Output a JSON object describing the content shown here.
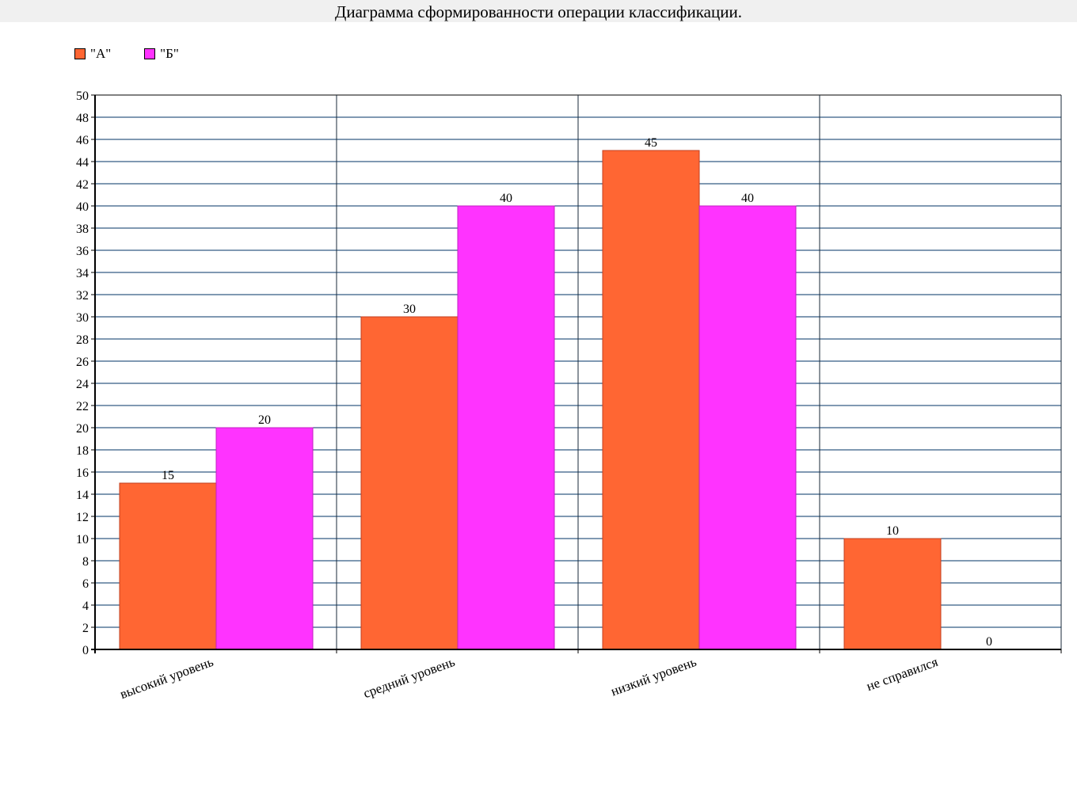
{
  "chart_data": {
    "type": "bar",
    "title": "Диаграмма сформированности операции классификации.",
    "categories": [
      "высокий уровень",
      "средний уровень",
      "низкий уровень",
      "не справился"
    ],
    "series": [
      {
        "name": "\"А\"",
        "color": "#ff6633",
        "values": [
          15,
          30,
          45,
          10
        ]
      },
      {
        "name": "\"Б\"",
        "color": "#ff33ff",
        "values": [
          20,
          40,
          40,
          0
        ]
      }
    ],
    "ylim": [
      0,
      50
    ],
    "ytick_step": 2,
    "xlabel": "",
    "ylabel": "",
    "grid": true,
    "legend_position": "top-left",
    "data_labels": true
  }
}
